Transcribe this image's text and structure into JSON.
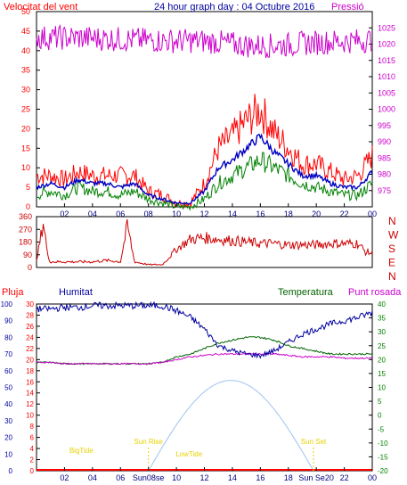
{
  "title": "24 hour graph day : 04 Octubre 2016",
  "colors": {
    "background": "#ffffff",
    "wind": "#ff0000",
    "gust_dark": "#0000c0",
    "wind_low": "#008000",
    "pressure": "#cc00cc",
    "direction": "#cc0000",
    "humidity": "#0000a0",
    "temperature": "#006400",
    "dew_point": "#cc00cc",
    "solar": "#9ec3f0",
    "events": "#ffff00",
    "rain": "#ff0000"
  },
  "x_ticks": [
    "02",
    "04",
    "06",
    "08",
    "10",
    "12",
    "14",
    "16",
    "18",
    "20",
    "22",
    "00"
  ],
  "chart_data": [
    {
      "type": "line",
      "panel": "wind-pressure",
      "left_label": "Velocitat del vent",
      "right_label": "Pressió",
      "ylim_left": [
        0,
        50
      ],
      "yticks_left": [
        "0",
        "5",
        "10",
        "15",
        "20",
        "25",
        "30",
        "35",
        "40",
        "45",
        "50"
      ],
      "ylim_right": [
        970,
        1030
      ],
      "yticks_right": [
        "975",
        "980",
        "985",
        "990",
        "995",
        "1000",
        "1005",
        "1010",
        "1015",
        "1020",
        "1025"
      ],
      "hours": [
        0,
        1,
        2,
        3,
        4,
        5,
        6,
        7,
        8,
        9,
        10,
        11,
        12,
        13,
        14,
        15,
        16,
        17,
        18,
        19,
        20,
        21,
        22,
        23,
        24
      ],
      "series": [
        {
          "key": "gust_max",
          "axis": "left",
          "values": [
            8,
            8,
            7,
            9,
            8,
            8,
            8,
            8,
            4,
            3,
            1,
            1,
            6,
            15,
            18,
            22,
            25,
            19,
            15,
            11,
            11,
            9,
            7,
            8,
            13
          ]
        },
        {
          "key": "wind_avg",
          "axis": "left",
          "values": [
            5,
            6,
            5,
            7,
            6,
            6,
            5,
            6,
            3,
            2,
            1,
            1,
            4,
            10,
            12,
            15,
            18,
            14,
            11,
            8,
            8,
            6,
            5,
            5,
            9
          ]
        },
        {
          "key": "wind_min",
          "axis": "left",
          "values": [
            3,
            4,
            3,
            5,
            4,
            4,
            3,
            4,
            2,
            1,
            0,
            0,
            2,
            6,
            8,
            10,
            12,
            10,
            8,
            6,
            5,
            4,
            3,
            3,
            6
          ]
        },
        {
          "key": "pressure",
          "axis": "right",
          "values": [
            1022,
            1022,
            1022,
            1022,
            1021.8,
            1021.7,
            1021.5,
            1021.3,
            1021.2,
            1021.1,
            1021,
            1021,
            1020.9,
            1020.6,
            1020,
            1019.6,
            1019.5,
            1019.6,
            1019.8,
            1020.2,
            1020.5,
            1020.7,
            1020.9,
            1021,
            1021.3
          ]
        }
      ]
    },
    {
      "type": "line",
      "panel": "wind-direction",
      "ylim": [
        0,
        360
      ],
      "yticks": [
        "0",
        "90",
        "180",
        "270",
        "360"
      ],
      "compass": [
        "N",
        "W",
        "S",
        "E",
        "N"
      ],
      "hours": [
        0,
        0.5,
        0.8,
        1,
        2,
        3,
        4,
        5,
        6,
        6.5,
        7,
        8,
        9,
        10,
        11,
        12,
        13,
        14,
        15,
        16,
        17,
        18,
        19,
        20,
        21,
        22,
        23,
        23.5,
        24
      ],
      "series": [
        {
          "key": "direction",
          "values": [
            40,
            330,
            80,
            40,
            40,
            40,
            40,
            50,
            40,
            300,
            40,
            20,
            20,
            130,
            200,
            210,
            200,
            190,
            180,
            170,
            170,
            160,
            160,
            160,
            170,
            170,
            170,
            110,
            100
          ]
        }
      ]
    },
    {
      "type": "line",
      "panel": "humidity-temperature",
      "left_label": "Pluja",
      "mid_label": "Humitat",
      "right_label_temp": "Temperatura",
      "right_label_dew": "Punt rosada",
      "ylim_rain": [
        0,
        30
      ],
      "yticks_rain": [
        "0",
        "2",
        "4",
        "6",
        "8",
        "10",
        "12",
        "14",
        "16",
        "18",
        "20",
        "22",
        "24",
        "26",
        "28",
        "30"
      ],
      "ylim_humidity": [
        0,
        100
      ],
      "yticks_humidity": [
        "0",
        "10",
        "20",
        "30",
        "40",
        "50",
        "60",
        "70",
        "80",
        "90",
        "100"
      ],
      "ylim_temp": [
        -20,
        40
      ],
      "yticks_temp": [
        "-20",
        "-15",
        "-10",
        "-5",
        "0",
        "5",
        "10",
        "15",
        "20",
        "25",
        "30",
        "35",
        "40"
      ],
      "hours": [
        0,
        1,
        2,
        3,
        4,
        5,
        6,
        7,
        8,
        9,
        10,
        11,
        12,
        13,
        14,
        15,
        16,
        17,
        18,
        19,
        20,
        21,
        22,
        23,
        24
      ],
      "series": [
        {
          "key": "humidity",
          "axis": "humidity",
          "values": [
            97,
            97,
            98,
            98,
            99,
            99,
            99,
            99,
            99,
            99,
            96,
            92,
            85,
            75,
            72,
            70,
            69,
            72,
            77,
            82,
            85,
            88,
            90,
            92,
            95
          ]
        },
        {
          "key": "temperature",
          "axis": "temp",
          "values": [
            19,
            19,
            18.5,
            18.5,
            18.5,
            18.5,
            18.5,
            18.5,
            18.5,
            19,
            21,
            22,
            24,
            26,
            27,
            28,
            28,
            27,
            25,
            24,
            23,
            22,
            22,
            22,
            22
          ]
        },
        {
          "key": "dew_point",
          "axis": "temp",
          "values": [
            19,
            19,
            18.5,
            18.5,
            18.5,
            18.5,
            18.5,
            18.5,
            18.5,
            19,
            20,
            21,
            21.5,
            22,
            22,
            22,
            22,
            22,
            21.5,
            21,
            21,
            21,
            20.5,
            20.5,
            20.5
          ]
        },
        {
          "key": "solar_elevation",
          "axis": "temp",
          "values_sunrise_noon_sunset": [
            -20,
            12.5,
            -20
          ],
          "hours_sunrise_noon_sunset": [
            8,
            14,
            19.8
          ]
        },
        {
          "key": "rain",
          "axis": "rain",
          "values": [
            0,
            0,
            0,
            0,
            0,
            0,
            0,
            0,
            0,
            0,
            0,
            0,
            0,
            0,
            0,
            0,
            0,
            0,
            0,
            0,
            0,
            0,
            0,
            0,
            0
          ]
        }
      ],
      "events": [
        {
          "label": "BigTide",
          "hour": 3.2
        },
        {
          "label": "Sun Rise",
          "hour": 8.0
        },
        {
          "label": "LowTide",
          "hour": 10.9
        },
        {
          "label": "Sun Set",
          "hour": 19.8
        }
      ],
      "x_bottom_labels": [
        "02",
        "04",
        "06",
        "Sun08se",
        "10",
        "12",
        "14",
        "16",
        "18",
        "Sun Se20",
        "22",
        "00"
      ]
    }
  ]
}
